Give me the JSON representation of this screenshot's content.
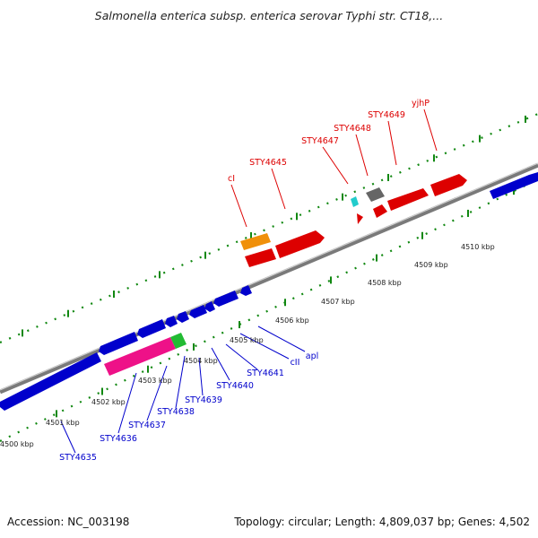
{
  "title": "Salmonella enterica subsp. enterica serovar Typhi str. CT18,...",
  "footer": {
    "accession": "Accession: NC_003198",
    "summary": "Topology: circular; Length: 4,809,037 bp; Genes: 4,502"
  },
  "scale": {
    "ticks": [
      "4500 kbp",
      "4501 kbp",
      "4502 kbp",
      "4503 kbp",
      "4504 kbp",
      "4505 kbp",
      "4506 kbp",
      "4507 kbp",
      "4508 kbp",
      "4509 kbp",
      "4510 kbp"
    ]
  },
  "colors": {
    "forward": "#dd0000",
    "reverse": "#0000cc",
    "backbone": "#888888",
    "orange": "#f0900a",
    "pink": "#ee1188",
    "green": "#22bb33",
    "cyan": "#22cccc",
    "gray": "#666666"
  },
  "genes_forward": [
    "cI",
    "STY4645",
    "STY4647",
    "STY4648",
    "STY4649",
    "yjhP"
  ],
  "genes_reverse": [
    "apl",
    "cII",
    "STY4641",
    "STY4640",
    "STY4639",
    "STY4638",
    "STY4637",
    "STY4636",
    "STY4635"
  ]
}
